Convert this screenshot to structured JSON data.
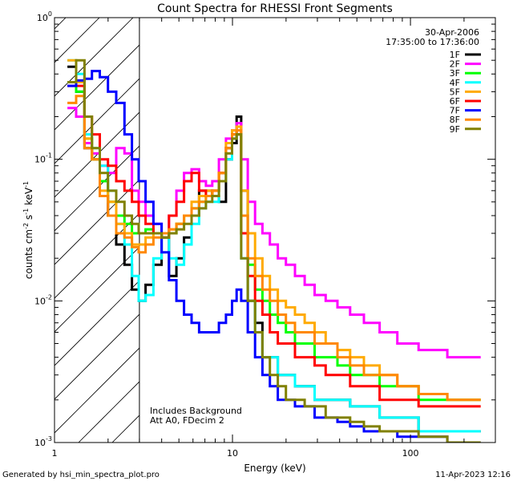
{
  "chart_data": {
    "type": "line",
    "title": "Count Spectra for RHESSI Front Segments",
    "xlabel": "Energy (keV)",
    "ylabel": "counts cm^-2 s^-1 keV^-1",
    "ylabel_parts": {
      "base": "counts cm",
      "exp1": "-2",
      "mid1": " s",
      "exp2": "-1",
      "mid2": " keV",
      "exp3": "-1"
    },
    "x_scale": "log",
    "y_scale": "log",
    "xlim": [
      1,
      300
    ],
    "ylim": [
      0.001,
      1
    ],
    "x_ticks": [
      {
        "value": 1,
        "label": "1"
      },
      {
        "value": 10,
        "label": "10"
      },
      {
        "value": 100,
        "label": "100"
      }
    ],
    "y_ticks": [
      {
        "value": 1,
        "base": "10",
        "exp": "0"
      },
      {
        "value": 0.1,
        "base": "10",
        "exp": "-1"
      },
      {
        "value": 0.01,
        "base": "10",
        "exp": "-2"
      },
      {
        "value": 0.001,
        "base": "10",
        "exp": "-3"
      }
    ],
    "date": "30-Apr-2006",
    "time_range": "17:35:00 to 17:36:00",
    "annotations": [
      "Includes Background",
      "Att A0, FDecim 2"
    ],
    "excluded_region_below_keV": 3,
    "legend_position": "top-right",
    "series": [
      {
        "name": "1F",
        "color": "#000000",
        "values": [
          0.45,
          0.3,
          0.12,
          0.1,
          0.055,
          0.04,
          0.025,
          0.018,
          0.012,
          0.01,
          0.013,
          0.018,
          0.03,
          0.015,
          0.02,
          0.028,
          0.04,
          0.06,
          0.06,
          0.055,
          0.05,
          0.1,
          0.13,
          0.2,
          0.06,
          0.01,
          0.007,
          0.004,
          0.004,
          0.003,
          0.003,
          0.0025,
          0.0025,
          0.002,
          0.002,
          0.002,
          0.0018,
          0.0018,
          0.0015,
          0.0015,
          0.0012,
          0.0012
        ]
      },
      {
        "name": "2F",
        "color": "#ff00ff",
        "values": [
          0.23,
          0.2,
          0.13,
          0.11,
          0.09,
          0.08,
          0.12,
          0.11,
          0.06,
          0.05,
          0.04,
          0.035,
          0.03,
          0.04,
          0.06,
          0.08,
          0.085,
          0.07,
          0.065,
          0.07,
          0.1,
          0.14,
          0.16,
          0.18,
          0.1,
          0.05,
          0.035,
          0.03,
          0.025,
          0.02,
          0.018,
          0.015,
          0.013,
          0.011,
          0.01,
          0.009,
          0.008,
          0.007,
          0.006,
          0.005,
          0.0045,
          0.004
        ]
      },
      {
        "name": "3F",
        "color": "#00ff00",
        "values": [
          0.35,
          0.3,
          0.14,
          0.1,
          0.07,
          0.05,
          0.04,
          0.035,
          0.03,
          0.03,
          0.032,
          0.03,
          0.028,
          0.03,
          0.035,
          0.04,
          0.045,
          0.05,
          0.055,
          0.06,
          0.08,
          0.12,
          0.15,
          0.15,
          0.03,
          0.018,
          0.012,
          0.01,
          0.008,
          0.007,
          0.006,
          0.005,
          0.005,
          0.004,
          0.004,
          0.0035,
          0.003,
          0.003,
          0.0025,
          0.0025,
          0.002,
          0.002
        ]
      },
      {
        "name": "4F",
        "color": "#00ffff",
        "values": [
          0.5,
          0.4,
          0.15,
          0.12,
          0.09,
          0.06,
          0.035,
          0.025,
          0.015,
          0.01,
          0.011,
          0.02,
          0.03,
          0.02,
          0.018,
          0.025,
          0.035,
          0.045,
          0.05,
          0.05,
          0.07,
          0.1,
          0.14,
          0.15,
          0.02,
          0.01,
          0.006,
          0.004,
          0.004,
          0.003,
          0.003,
          0.0025,
          0.0025,
          0.002,
          0.002,
          0.002,
          0.0018,
          0.0018,
          0.0015,
          0.0015,
          0.0012,
          0.0012
        ]
      },
      {
        "name": "5F",
        "color": "#ffaa00",
        "values": [
          0.5,
          0.35,
          0.14,
          0.1,
          0.06,
          0.05,
          0.035,
          0.03,
          0.025,
          0.025,
          0.028,
          0.03,
          0.03,
          0.032,
          0.035,
          0.04,
          0.05,
          0.055,
          0.06,
          0.06,
          0.08,
          0.13,
          0.16,
          0.17,
          0.06,
          0.03,
          0.02,
          0.015,
          0.012,
          0.01,
          0.009,
          0.008,
          0.007,
          0.006,
          0.005,
          0.0045,
          0.004,
          0.0035,
          0.003,
          0.0025,
          0.0022,
          0.002
        ]
      },
      {
        "name": "6F",
        "color": "#ff0000",
        "values": [
          0.33,
          0.33,
          0.2,
          0.15,
          0.1,
          0.09,
          0.07,
          0.06,
          0.05,
          0.04,
          0.035,
          0.03,
          0.028,
          0.04,
          0.05,
          0.07,
          0.08,
          0.06,
          0.055,
          0.06,
          0.08,
          0.12,
          0.15,
          0.15,
          0.03,
          0.015,
          0.01,
          0.008,
          0.006,
          0.005,
          0.005,
          0.004,
          0.004,
          0.0035,
          0.003,
          0.003,
          0.0025,
          0.0025,
          0.002,
          0.002,
          0.0018,
          0.0018
        ]
      },
      {
        "name": "7F",
        "color": "#0000ff",
        "values": [
          0.33,
          0.36,
          0.37,
          0.42,
          0.38,
          0.3,
          0.25,
          0.15,
          0.1,
          0.07,
          0.05,
          0.035,
          0.022,
          0.014,
          0.01,
          0.008,
          0.007,
          0.006,
          0.006,
          0.006,
          0.007,
          0.008,
          0.01,
          0.012,
          0.01,
          0.006,
          0.004,
          0.003,
          0.0025,
          0.002,
          0.002,
          0.0018,
          0.0018,
          0.0015,
          0.0015,
          0.0014,
          0.0013,
          0.0012,
          0.0012,
          0.0011,
          0.0011,
          0.001
        ]
      },
      {
        "name": "8F",
        "color": "#ff8800",
        "values": [
          0.25,
          0.28,
          0.12,
          0.1,
          0.055,
          0.04,
          0.03,
          0.028,
          0.024,
          0.022,
          0.025,
          0.028,
          0.03,
          0.032,
          0.035,
          0.04,
          0.045,
          0.05,
          0.055,
          0.06,
          0.08,
          0.12,
          0.15,
          0.16,
          0.04,
          0.02,
          0.015,
          0.012,
          0.01,
          0.008,
          0.007,
          0.006,
          0.006,
          0.005,
          0.005,
          0.004,
          0.0035,
          0.003,
          0.003,
          0.0025,
          0.0022,
          0.002
        ]
      },
      {
        "name": "9F",
        "color": "#808000",
        "values": [
          0.35,
          0.5,
          0.2,
          0.12,
          0.08,
          0.06,
          0.05,
          0.04,
          0.035,
          0.03,
          0.03,
          0.03,
          0.028,
          0.03,
          0.032,
          0.035,
          0.04,
          0.045,
          0.05,
          0.055,
          0.07,
          0.11,
          0.14,
          0.15,
          0.02,
          0.01,
          0.006,
          0.004,
          0.003,
          0.0025,
          0.002,
          0.002,
          0.0018,
          0.0018,
          0.0015,
          0.0015,
          0.0014,
          0.0013,
          0.0012,
          0.0012,
          0.0011,
          0.001
        ]
      }
    ],
    "x": [
      1.25,
      1.4,
      1.55,
      1.7,
      1.9,
      2.1,
      2.35,
      2.6,
      2.85,
      3.1,
      3.4,
      3.8,
      4.2,
      4.6,
      5.1,
      5.6,
      6.2,
      6.8,
      7.4,
      8.0,
      8.8,
      9.6,
      10.3,
      10.8,
      11.6,
      12.8,
      14.0,
      15.5,
      17.0,
      19.0,
      21.0,
      24.0,
      27.0,
      31.0,
      36.0,
      42.0,
      50.0,
      60.0,
      75.0,
      95.0,
      130.0,
      200.0
    ]
  },
  "footer": {
    "generated_by": "Generated by hsi_min_spectra_plot.pro",
    "timestamp": "11-Apr-2023 12:16"
  }
}
